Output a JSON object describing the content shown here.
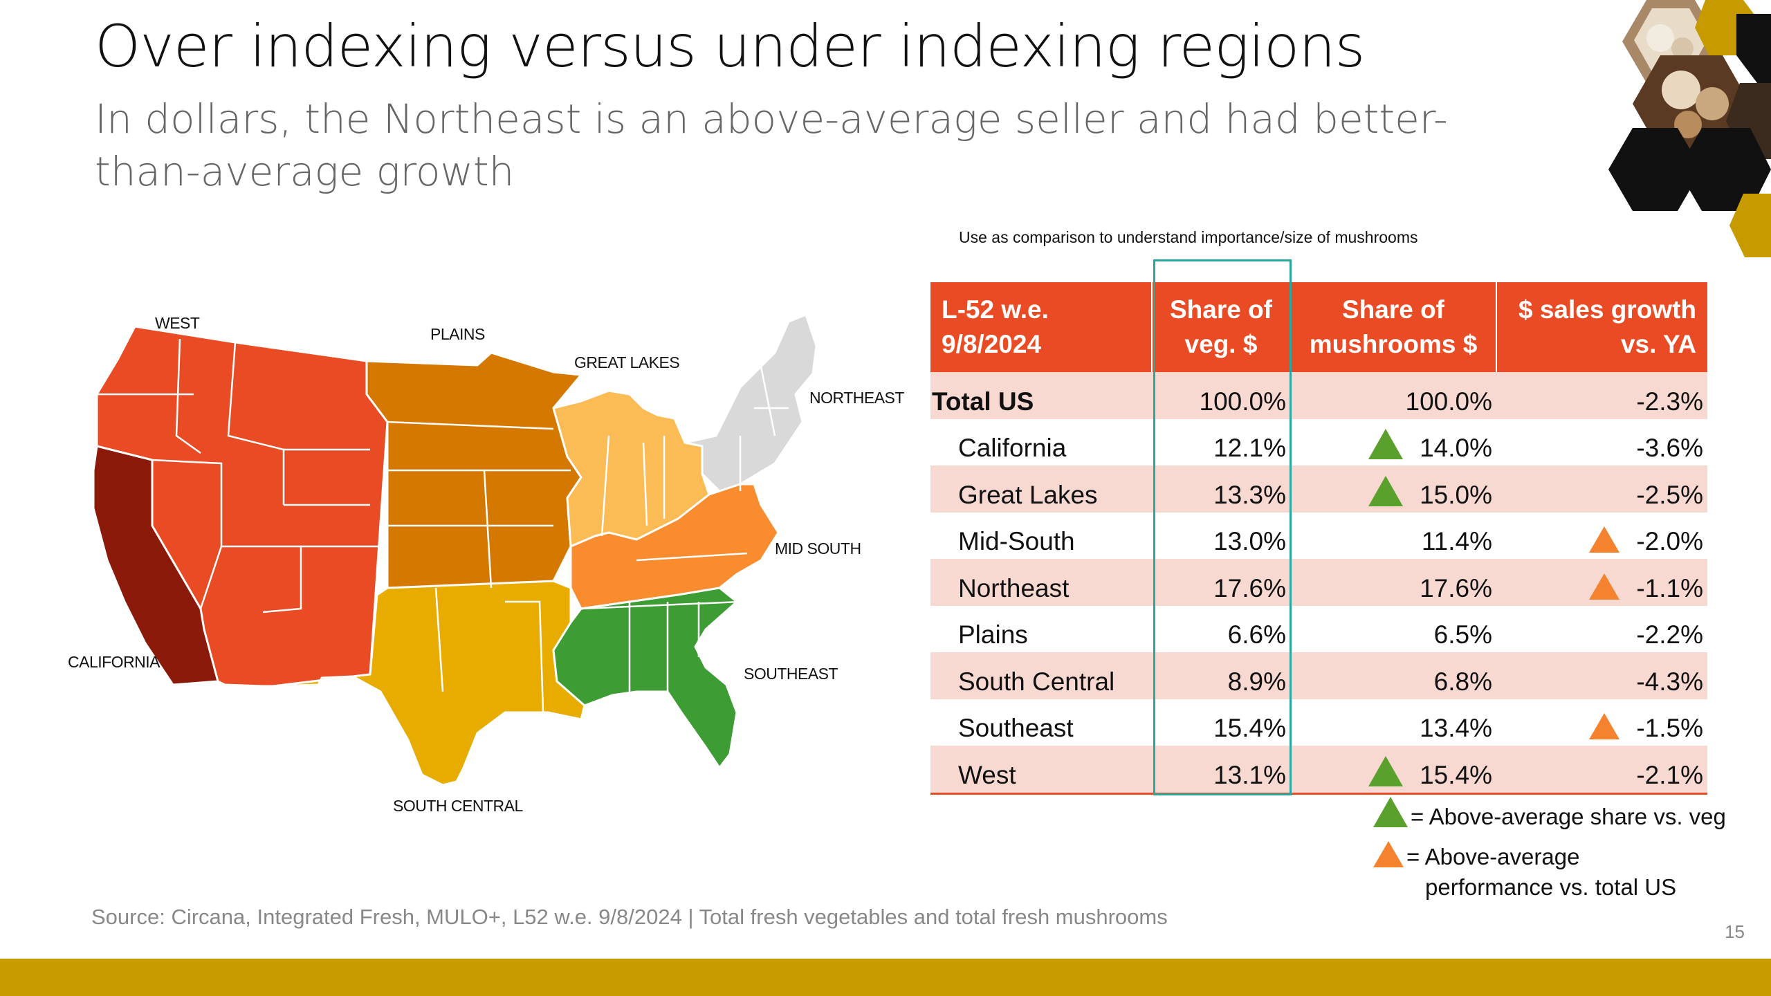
{
  "slide": {
    "title": "Over indexing versus under indexing regions",
    "subtitle": "In dollars, the Northeast is an above-average seller and had better-than-average growth",
    "note": "Use as comparison to understand importance/size of mushrooms",
    "source": "Source: Circana, Integrated Fresh, MULO+, L52 w.e. 9/8/2024 | Total fresh vegetables and total fresh mushrooms",
    "page_number": "15",
    "accent_color": "#e94c24",
    "bar_color": "#c79a00"
  },
  "map": {
    "labels": {
      "west": "WEST",
      "plains": "PLAINS",
      "great_lakes": "GREAT LAKES",
      "northeast": "NORTHEAST",
      "mid_south": "MID SOUTH",
      "california": "CALIFORNIA",
      "southeast": "SOUTHEAST",
      "south_central": "SOUTH CENTRAL"
    },
    "colors": {
      "west": "#e94c24",
      "california": "#8b1a0a",
      "plains": "#d47800",
      "great_lakes": "#fbbb55",
      "northeast": "#d9d9d9",
      "mid_south": "#fa8c30",
      "southeast": "#3e9c35",
      "south_central": "#e8ab00"
    }
  },
  "table": {
    "headers": {
      "period": "L-52 w.e. 9/8/2024",
      "share_veg": "Share of veg. $",
      "share_mush": "Share of mushrooms $",
      "growth": "$ sales growth vs. YA"
    },
    "rows": [
      {
        "name": "Total US",
        "share_veg": "100.0%",
        "share_mush": "100.0%",
        "growth": "-2.3%",
        "green": false,
        "orange": false
      },
      {
        "name": "California",
        "share_veg": "12.1%",
        "share_mush": "14.0%",
        "growth": "-3.6%",
        "green": true,
        "orange": false
      },
      {
        "name": "Great Lakes",
        "share_veg": "13.3%",
        "share_mush": "15.0%",
        "growth": "-2.5%",
        "green": true,
        "orange": false
      },
      {
        "name": "Mid-South",
        "share_veg": "13.0%",
        "share_mush": "11.4%",
        "growth": "-2.0%",
        "green": false,
        "orange": true
      },
      {
        "name": "Northeast",
        "share_veg": "17.6%",
        "share_mush": "17.6%",
        "growth": "-1.1%",
        "green": false,
        "orange": true
      },
      {
        "name": "Plains",
        "share_veg": "6.6%",
        "share_mush": "6.5%",
        "growth": "-2.2%",
        "green": false,
        "orange": false
      },
      {
        "name": "South Central",
        "share_veg": "8.9%",
        "share_mush": "6.8%",
        "growth": "-4.3%",
        "green": false,
        "orange": false
      },
      {
        "name": "Southeast",
        "share_veg": "15.4%",
        "share_mush": "13.4%",
        "growth": "-1.5%",
        "green": false,
        "orange": true
      },
      {
        "name": "West",
        "share_veg": "13.1%",
        "share_mush": "15.4%",
        "growth": "-2.1%",
        "green": true,
        "orange": false
      }
    ]
  },
  "legend": {
    "green_label": "= Above-average share vs. veg",
    "orange_label_line1": "= Above-average",
    "orange_label_line2": "performance vs. total US",
    "green_color": "#5aa02c",
    "orange_color": "#f5822e"
  }
}
